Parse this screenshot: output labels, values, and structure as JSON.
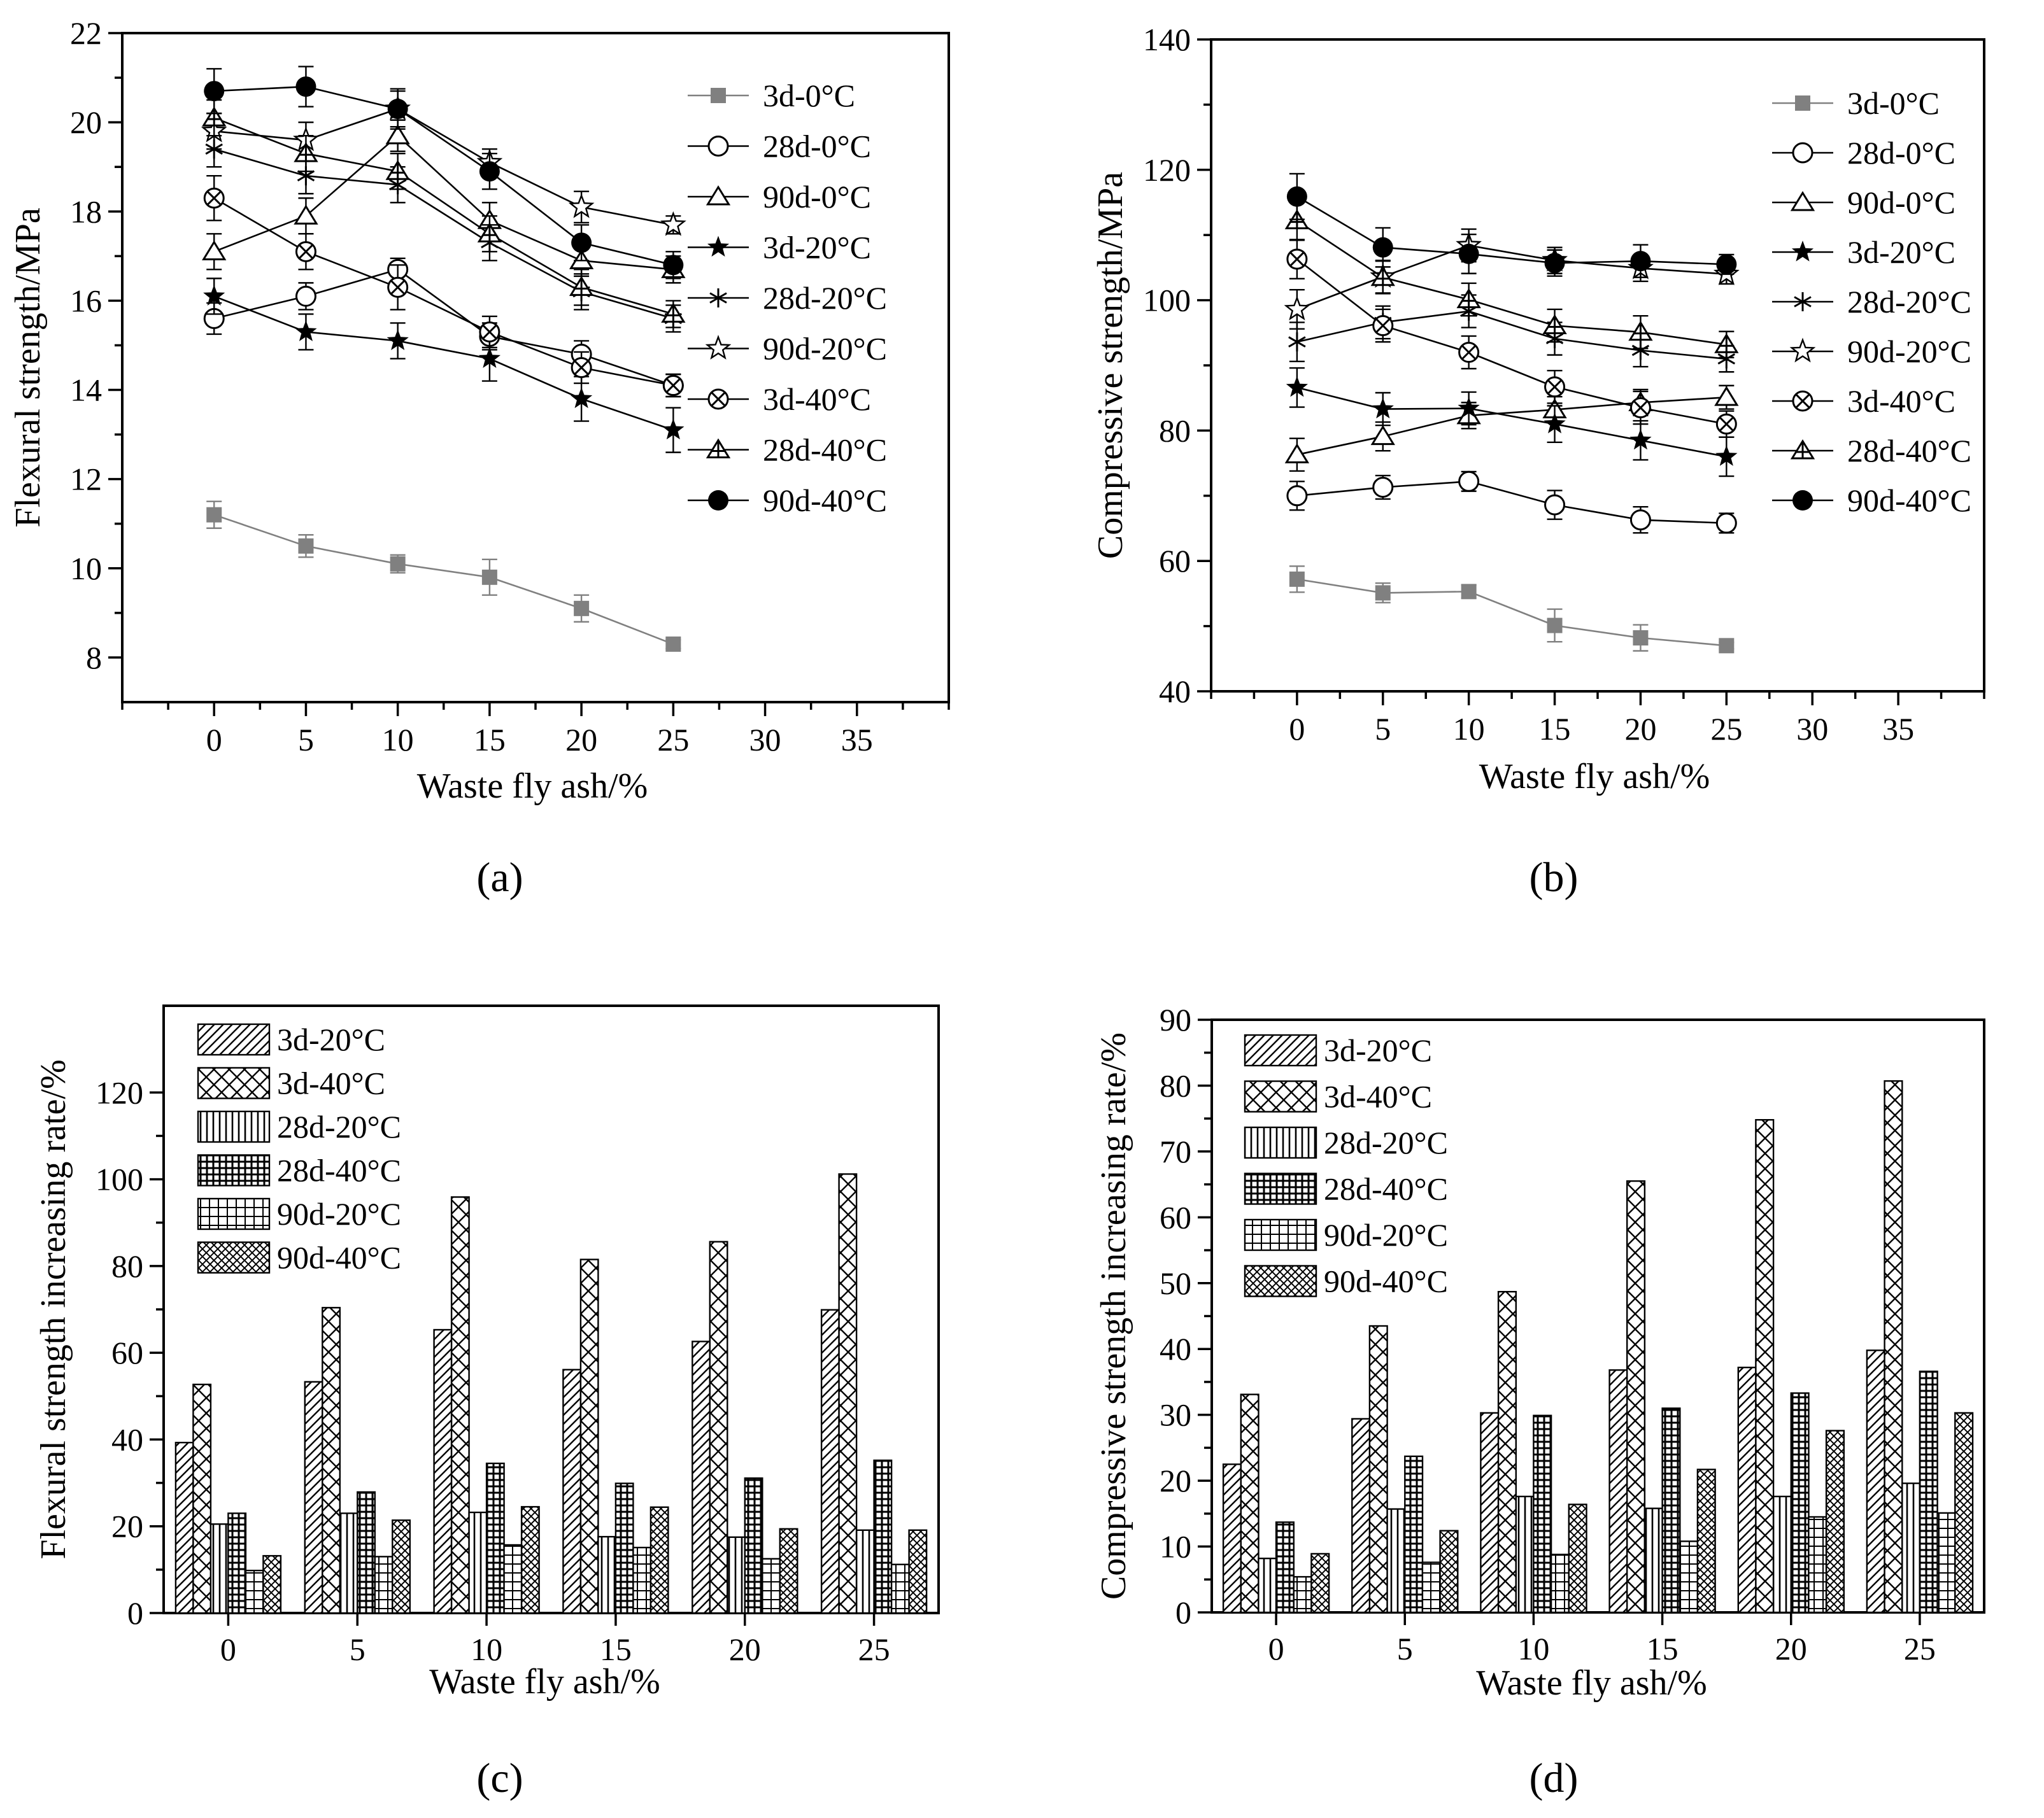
{
  "figure": {
    "labels": [
      "(a)",
      "(b)",
      "(c)",
      "(d)"
    ]
  },
  "chart_data": [
    {
      "panel": "(a)",
      "type": "line",
      "xlabel": "Waste fly ash/%",
      "ylabel": "Flexural strength/MPa",
      "xlim": [
        -5,
        40
      ],
      "ylim": [
        7,
        22
      ],
      "xticks": [
        0,
        5,
        10,
        15,
        20,
        25,
        30,
        35
      ],
      "yticks": [
        8,
        10,
        12,
        14,
        16,
        18,
        20,
        22
      ],
      "legend_position": "right",
      "x": [
        0,
        5,
        10,
        15,
        20,
        25
      ],
      "series": [
        {
          "name": "3d-0°C",
          "marker": "square-filled",
          "color": "#808080",
          "values": [
            11.2,
            10.5,
            10.1,
            9.8,
            9.1,
            8.3
          ],
          "err": [
            0.3,
            0.25,
            0.2,
            0.4,
            0.3,
            0.1
          ]
        },
        {
          "name": "28d-0°C",
          "marker": "circle-open",
          "color": "#000000",
          "values": [
            15.6,
            16.1,
            16.7,
            15.2,
            14.8,
            14.1
          ],
          "err": [
            0.35,
            0.3,
            0.25,
            0.3,
            0.3,
            0.25
          ]
        },
        {
          "name": "90d-0°C",
          "marker": "triangle-open",
          "color": "#000000",
          "values": [
            17.1,
            17.9,
            19.7,
            17.8,
            16.9,
            16.7
          ],
          "err": [
            0.4,
            0.4,
            0.35,
            0.4,
            0.35,
            0.3
          ]
        },
        {
          "name": "3d-20°C",
          "marker": "star-filled",
          "color": "#000000",
          "values": [
            16.1,
            15.3,
            15.1,
            14.7,
            13.8,
            13.1
          ],
          "err": [
            0.4,
            0.4,
            0.4,
            0.5,
            0.5,
            0.5
          ]
        },
        {
          "name": "28d-20°C",
          "marker": "asterisk",
          "color": "#000000",
          "values": [
            19.4,
            18.8,
            18.6,
            17.3,
            16.2,
            15.6
          ],
          "err": [
            0.4,
            0.4,
            0.4,
            0.4,
            0.4,
            0.3
          ]
        },
        {
          "name": "90d-20°C",
          "marker": "star-open",
          "color": "#000000",
          "values": [
            19.8,
            19.6,
            20.3,
            19.1,
            18.1,
            17.7
          ],
          "err": [
            0.4,
            0.4,
            0.4,
            0.3,
            0.35,
            0.2
          ]
        },
        {
          "name": "3d-40°C",
          "marker": "circle-x",
          "color": "#000000",
          "values": [
            18.3,
            17.1,
            16.3,
            15.3,
            14.5,
            14.1
          ],
          "err": [
            0.5,
            0.4,
            0.5,
            0.35,
            0.35,
            0.25
          ]
        },
        {
          "name": "28d-40°C",
          "marker": "triangle-plus",
          "color": "#000000",
          "values": [
            20.1,
            19.3,
            18.9,
            17.5,
            16.3,
            15.7
          ],
          "err": [
            0.4,
            0.4,
            0.4,
            0.4,
            0.4,
            0.3
          ]
        },
        {
          "name": "90d-40°C",
          "marker": "circle-filled",
          "color": "#000000",
          "values": [
            20.7,
            20.8,
            20.3,
            18.9,
            17.3,
            16.8
          ],
          "err": [
            0.5,
            0.45,
            0.45,
            0.4,
            0.4,
            0.3
          ]
        }
      ]
    },
    {
      "panel": "(b)",
      "type": "line",
      "xlabel": "Waste fly ash/%",
      "ylabel": "Compressive strength/MPa",
      "xlim": [
        -5,
        40
      ],
      "ylim": [
        40,
        140
      ],
      "xticks": [
        0,
        5,
        10,
        15,
        20,
        25,
        30,
        35
      ],
      "yticks": [
        40,
        60,
        80,
        100,
        120,
        140
      ],
      "legend_position": "right",
      "x": [
        0,
        5,
        10,
        15,
        20,
        25
      ],
      "series": [
        {
          "name": "3d-0°C",
          "marker": "square-filled",
          "color": "#808080",
          "values": [
            57.2,
            55.1,
            55.3,
            50.1,
            48.2,
            47.0
          ],
          "err": [
            2.0,
            1.5,
            1.0,
            2.5,
            2.0,
            0.5
          ]
        },
        {
          "name": "28d-0°C",
          "marker": "circle-open",
          "color": "#000000",
          "values": [
            70.0,
            71.3,
            72.2,
            68.6,
            66.3,
            65.8
          ],
          "err": [
            2.2,
            1.8,
            1.5,
            2.2,
            2.0,
            1.5
          ]
        },
        {
          "name": "90d-0°C",
          "marker": "triangle-open",
          "color": "#000000",
          "values": [
            76.3,
            79.1,
            82.3,
            83.2,
            84.3,
            85.1
          ],
          "err": [
            2.5,
            2.2,
            2.0,
            2.0,
            2.0,
            1.8
          ]
        },
        {
          "name": "3d-20°C",
          "marker": "star-filled",
          "color": "#000000",
          "values": [
            86.6,
            83.3,
            83.4,
            81.0,
            78.5,
            76.0
          ],
          "err": [
            3.0,
            2.5,
            2.5,
            2.8,
            3.0,
            3.0
          ]
        },
        {
          "name": "28d-20°C",
          "marker": "asterisk",
          "color": "#000000",
          "values": [
            93.6,
            96.6,
            98.3,
            94.1,
            92.3,
            91.0
          ],
          "err": [
            3.0,
            2.5,
            2.5,
            2.5,
            2.5,
            2.0
          ]
        },
        {
          "name": "90d-20°C",
          "marker": "star-open",
          "color": "#000000",
          "values": [
            98.6,
            103.6,
            108.4,
            106.1,
            104.9,
            104.0
          ],
          "err": [
            3.0,
            2.5,
            2.5,
            2.0,
            2.0,
            1.5
          ]
        },
        {
          "name": "3d-40°C",
          "marker": "circle-x",
          "color": "#000000",
          "values": [
            106.3,
            96.1,
            92.0,
            86.7,
            83.5,
            81.0
          ],
          "err": [
            3.0,
            2.5,
            2.5,
            2.5,
            2.5,
            2.0
          ]
        },
        {
          "name": "28d-40°C",
          "marker": "triangle-plus",
          "color": "#000000",
          "values": [
            112.2,
            103.5,
            100.1,
            96.1,
            95.1,
            93.2
          ],
          "err": [
            3.0,
            2.5,
            2.5,
            2.5,
            2.5,
            2.0
          ]
        },
        {
          "name": "90d-40°C",
          "marker": "circle-filled",
          "color": "#000000",
          "values": [
            115.9,
            108.1,
            107.1,
            105.7,
            106.0,
            105.5
          ],
          "err": [
            3.5,
            3.0,
            3.0,
            2.0,
            2.5,
            1.5
          ]
        }
      ]
    },
    {
      "panel": "(c)",
      "type": "bar",
      "xlabel": "Waste fly ash/%",
      "ylabel": "Flexural strength increasing rate/%",
      "ylim": [
        0,
        140
      ],
      "yticks": [
        0,
        20,
        40,
        60,
        80,
        100,
        120
      ],
      "legend_position": "top-left",
      "categories": [
        "0",
        "5",
        "10",
        "15",
        "20",
        "25"
      ],
      "series": [
        {
          "name": "3d-20°C",
          "pattern": "diag",
          "values": [
            39.3,
            53.3,
            65.3,
            56.1,
            62.6,
            69.9
          ]
        },
        {
          "name": "3d-40°C",
          "pattern": "cross",
          "values": [
            52.7,
            70.4,
            95.9,
            81.5,
            85.6,
            101.2
          ]
        },
        {
          "name": "28d-20°C",
          "pattern": "vert",
          "values": [
            20.5,
            23.0,
            23.2,
            17.6,
            17.5,
            19.1
          ]
        },
        {
          "name": "28d-40°C",
          "pattern": "dense",
          "values": [
            23.0,
            27.9,
            34.5,
            29.9,
            31.1,
            35.2
          ]
        },
        {
          "name": "90d-20°C",
          "pattern": "grid",
          "values": [
            9.8,
            13.0,
            15.7,
            15.1,
            12.5,
            11.2
          ]
        },
        {
          "name": "90d-40°C",
          "pattern": "fine",
          "values": [
            13.2,
            21.4,
            24.5,
            24.4,
            19.4,
            19.1
          ]
        }
      ]
    },
    {
      "panel": "(d)",
      "type": "bar",
      "xlabel": "Waste fly ash/%",
      "ylabel": "Compressive strength increasing rate/%",
      "ylim": [
        0,
        90
      ],
      "yticks": [
        0,
        10,
        20,
        30,
        40,
        50,
        60,
        70,
        80,
        90
      ],
      "legend_position": "top-left",
      "categories": [
        "0",
        "5",
        "10",
        "15",
        "20",
        "25"
      ],
      "series": [
        {
          "name": "3d-20°C",
          "pattern": "diag",
          "values": [
            22.5,
            29.4,
            30.3,
            36.8,
            37.2,
            39.8
          ]
        },
        {
          "name": "3d-40°C",
          "pattern": "cross",
          "values": [
            33.1,
            43.5,
            48.7,
            65.5,
            74.8,
            80.7
          ]
        },
        {
          "name": "28d-20°C",
          "pattern": "vert",
          "values": [
            8.2,
            15.7,
            17.6,
            15.8,
            17.6,
            19.6
          ]
        },
        {
          "name": "28d-40°C",
          "pattern": "dense",
          "values": [
            13.7,
            23.7,
            29.9,
            31.0,
            33.3,
            36.6
          ]
        },
        {
          "name": "90d-20°C",
          "pattern": "grid",
          "values": [
            5.4,
            7.6,
            8.8,
            10.8,
            14.5,
            15.1
          ]
        },
        {
          "name": "90d-40°C",
          "pattern": "fine",
          "values": [
            8.9,
            12.4,
            16.4,
            21.7,
            27.6,
            30.3
          ]
        }
      ]
    }
  ]
}
